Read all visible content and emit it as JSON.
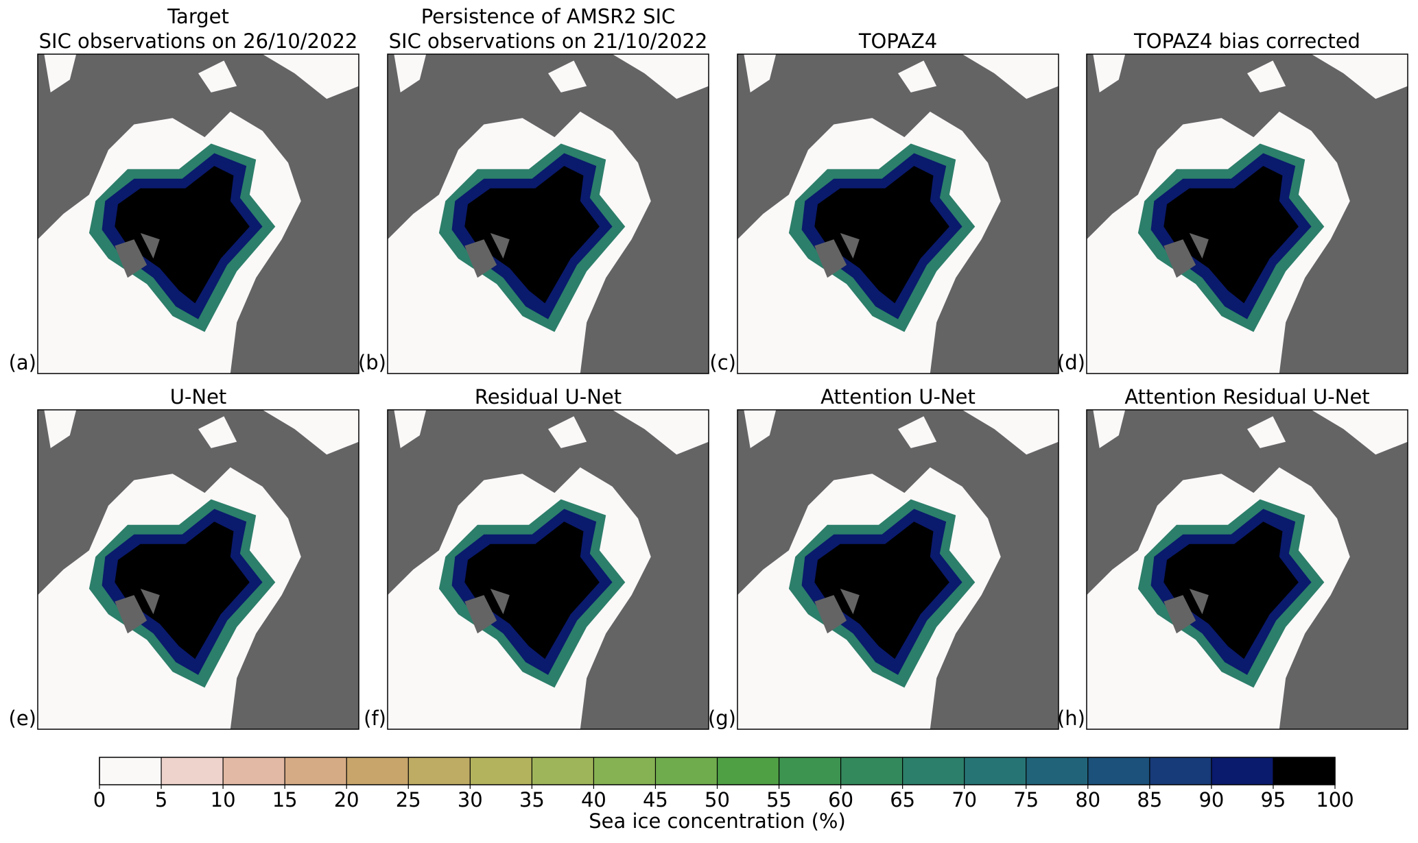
{
  "panels": [
    {
      "label": "(a)",
      "title": [
        "Target",
        "SIC observations on 26/10/2022"
      ]
    },
    {
      "label": "(b)",
      "title": [
        "Persistence of AMSR2 SIC",
        "SIC observations on 21/10/2022"
      ]
    },
    {
      "label": "(c)",
      "title": [
        "TOPAZ4"
      ]
    },
    {
      "label": "(d)",
      "title": [
        "TOPAZ4 bias corrected"
      ]
    },
    {
      "label": "(e)",
      "title": [
        "U-Net"
      ]
    },
    {
      "label": "(f)",
      "title": [
        "Residual U-Net"
      ]
    },
    {
      "label": "(g)",
      "title": [
        "Attention U-Net"
      ]
    },
    {
      "label": "(h)",
      "title": [
        "Attention Residual U-Net"
      ]
    }
  ],
  "colorbar": {
    "label": "Sea ice concentration (%)",
    "ticks": [
      0,
      5,
      10,
      15,
      20,
      25,
      30,
      35,
      40,
      45,
      50,
      55,
      60,
      65,
      70,
      75,
      80,
      85,
      90,
      95,
      100
    ],
    "colors": [
      "#fbf8f8",
      "#eed3cc",
      "#e2b9a4",
      "#d5ab85",
      "#c7a56b",
      "#bfac64",
      "#b3b35e",
      "#9fb55a",
      "#87b254",
      "#6fac4e",
      "#4f9f45",
      "#3c9450",
      "#34895c",
      "#2c7f6a",
      "#277475",
      "#21647a",
      "#1b517a",
      "#173a78",
      "#0a1a6d",
      "#000000"
    ]
  }
}
